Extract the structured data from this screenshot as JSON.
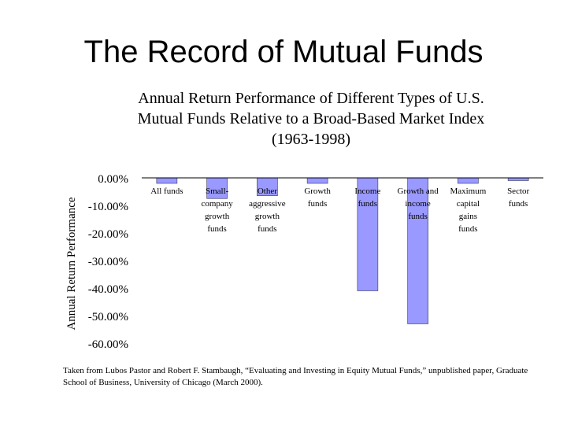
{
  "slide": {
    "title": "The Record of Mutual Funds",
    "source_note": "Taken from Lubos Pastor and Robert F. Stambaugh, “Evaluating and Investing in Equity Mutual Funds,” unpublished paper, Graduate School of Business, University of Chicago (March 2000)."
  },
  "chart_data": {
    "type": "bar",
    "title": "Annual Return Performance of Different Types of U.S.\nMutual Funds Relative to a Broad-Based Market Index\n(1963-1998)",
    "xlabel": "",
    "ylabel": "Annual Return Performance",
    "categories": [
      "All funds",
      "Small-company growth funds",
      "Other aggressive growth funds",
      "Growth funds",
      "Income funds",
      "Growth and income funds",
      "Maximum capital gains funds",
      "Sector funds"
    ],
    "category_lines": [
      [
        "All funds"
      ],
      [
        "Small-",
        "company",
        "growth",
        "funds"
      ],
      [
        "Other",
        "aggressive",
        "growth",
        "funds"
      ],
      [
        "Growth",
        "funds"
      ],
      [
        "Income",
        "funds"
      ],
      [
        "Growth and",
        "income",
        "funds"
      ],
      [
        "Maximum",
        "capital",
        "gains",
        "funds"
      ],
      [
        "Sector",
        "funds"
      ]
    ],
    "values": [
      -2.0,
      -7.5,
      -6.5,
      -2.0,
      -41.0,
      -53.0,
      -2.0,
      -1.0
    ],
    "ylim": [
      -60,
      0
    ],
    "yticks": [
      0,
      -10,
      -20,
      -30,
      -40,
      -50,
      -60
    ],
    "ytick_labels": [
      "0.00%",
      "-10.00%",
      "-20.00%",
      "-30.00%",
      "-40.00%",
      "-50.00%",
      "-60.00%"
    ],
    "bar_color": "#9999ff",
    "grid": false,
    "legend": "none"
  }
}
